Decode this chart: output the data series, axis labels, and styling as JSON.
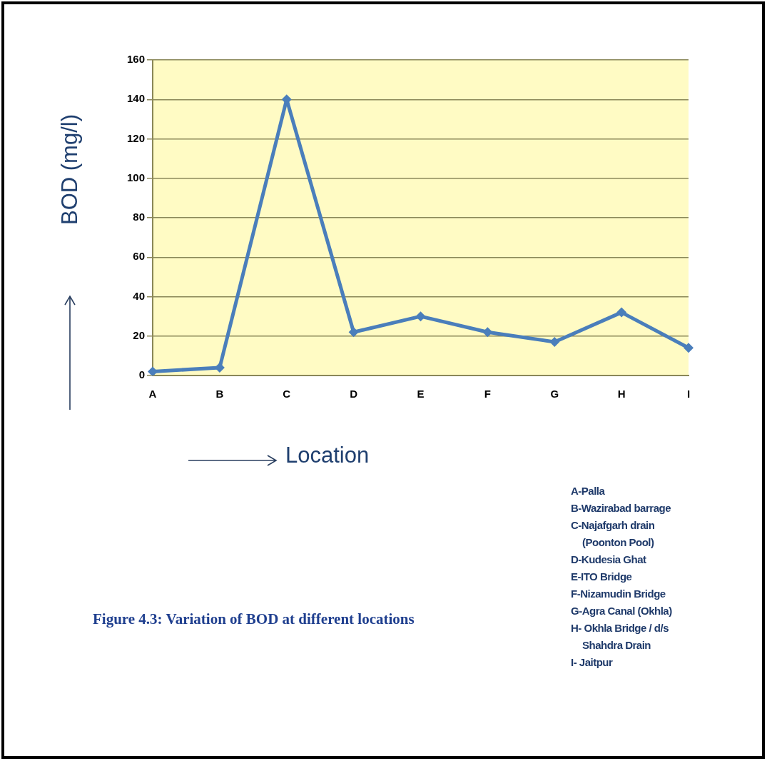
{
  "chart_data": {
    "type": "line",
    "title": "Figure 4.3: Variation of BOD at different locations",
    "xlabel": "Location",
    "ylabel": "BOD (mg/l)",
    "categories": [
      "A",
      "B",
      "C",
      "D",
      "E",
      "F",
      "G",
      "H",
      "I"
    ],
    "series": [
      {
        "color": "#4a7ebb",
        "values": [
          2,
          4,
          140,
          22,
          30,
          22,
          17,
          32,
          14
        ]
      }
    ],
    "ylim": [
      0,
      160
    ],
    "yticks": [
      0,
      20,
      40,
      60,
      80,
      100,
      120,
      140,
      160
    ],
    "grid": "y",
    "legend": false,
    "marker": "diamond",
    "line_style": "solid",
    "annotations": [
      "A-Palla",
      "B-Wazirabad barrage",
      "C-Najafgarh drain\n(Poonton Pool)",
      "D-Kudesia Ghat",
      "E-ITO Bridge",
      "F-Nizamudin Bridge",
      "G-Agra Canal (Okhla)",
      "H- Okhla Bridge / d/s\nShahdra Drain",
      "I- Jaitpur"
    ]
  }
}
